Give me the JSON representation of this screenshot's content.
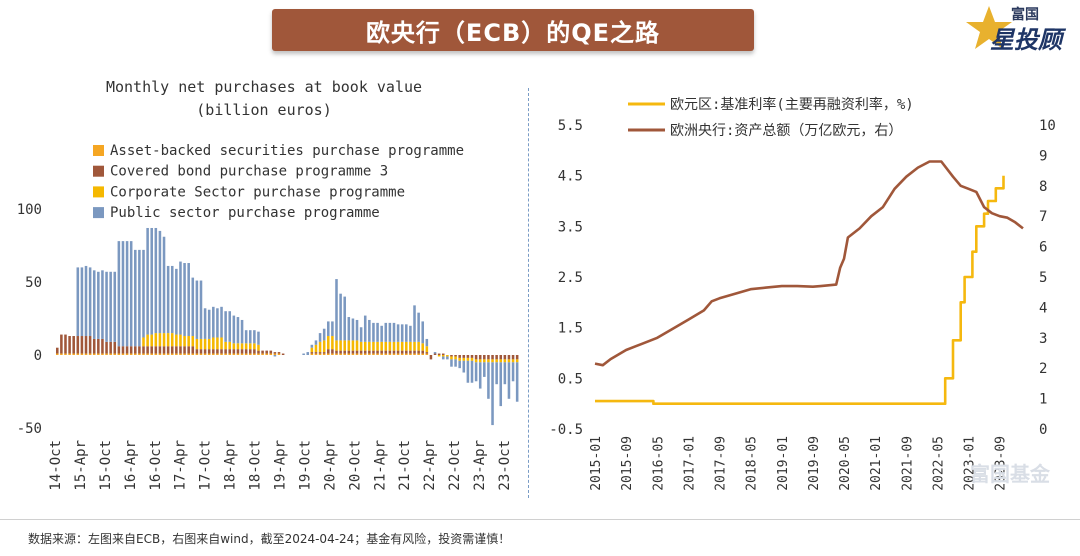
{
  "header": {
    "title": "欧央行（ECB）的QE之路"
  },
  "logo": {
    "top": "富国",
    "main": "星投顾",
    "icon": "star-icon"
  },
  "watermark": {
    "text": "富国基金"
  },
  "footer": {
    "text": "数据来源：左图来自ECB，右图来自wind，截至2024-04-24；基金有风险，投资需谨慎！"
  },
  "colors": {
    "abspp": "#f5a623",
    "cbpp3": "#a0573a",
    "cspp": "#f5b800",
    "pspp": "#7b98c0",
    "rate": "#f5b80f",
    "assets": "#a0573a",
    "banner": "#a0573a"
  },
  "chart_data": [
    {
      "type": "bar",
      "stacked": true,
      "title": "Monthly net purchases at book value",
      "subtitle": "(billion euros)",
      "ylim": [
        -55,
        105
      ],
      "yticks": [
        100,
        50,
        0,
        -50
      ],
      "xticks": [
        "14-Oct",
        "15-Apr",
        "15-Oct",
        "16-Apr",
        "16-Oct",
        "17-Apr",
        "17-Oct",
        "18-Apr",
        "18-Oct",
        "19-Apr",
        "19-Oct",
        "20-Apr",
        "20-Oct",
        "21-Apr",
        "21-Oct",
        "22-Apr",
        "22-Oct",
        "23-Apr",
        "23-Oct"
      ],
      "legend_position": "top-left",
      "series": [
        {
          "name": "Asset-backed securities purchase programme",
          "color": "#f5a623",
          "values": [
            1,
            1,
            1,
            1,
            1,
            1,
            1,
            1,
            1,
            1,
            1,
            1,
            1,
            1,
            1,
            1,
            1,
            1,
            1,
            1,
            1,
            1,
            1,
            1,
            1,
            1,
            1,
            1,
            1,
            1,
            1,
            1,
            1,
            1,
            1,
            1,
            1,
            1,
            1,
            1,
            1,
            1,
            1,
            1,
            1,
            1,
            1,
            1,
            1,
            1,
            1,
            1,
            1,
            1,
            1,
            0,
            0,
            0,
            0,
            0,
            0,
            0,
            1,
            1,
            1,
            1,
            1,
            1,
            1,
            1,
            1,
            1,
            1,
            1,
            1,
            1,
            1,
            1,
            1,
            1,
            1,
            1,
            1,
            1,
            1,
            1,
            1,
            1,
            1,
            1,
            1,
            0,
            0,
            0,
            0,
            0,
            0,
            0,
            0,
            0,
            0,
            0,
            0,
            0,
            0,
            0,
            0,
            0,
            0,
            0,
            0,
            0,
            0
          ]
        },
        {
          "name": "Covered bond purchase programme 3",
          "color": "#a0573a",
          "values": [
            4,
            13,
            13,
            12,
            12,
            12,
            12,
            12,
            12,
            10,
            10,
            10,
            8,
            8,
            8,
            5,
            5,
            5,
            5,
            5,
            5,
            5,
            5,
            5,
            5,
            5,
            5,
            5,
            5,
            5,
            5,
            5,
            5,
            5,
            3,
            3,
            3,
            3,
            3,
            3,
            3,
            3,
            3,
            3,
            3,
            3,
            3,
            3,
            3,
            2,
            2,
            2,
            2,
            1,
            1,
            1,
            0,
            0,
            0,
            0,
            0,
            0,
            1,
            1,
            1,
            1,
            3,
            3,
            2,
            2,
            2,
            2,
            2,
            2,
            2,
            2,
            2,
            2,
            2,
            2,
            2,
            2,
            2,
            2,
            2,
            2,
            2,
            2,
            2,
            2,
            1,
            -3,
            1,
            1,
            1,
            0,
            -1,
            -1,
            -2,
            -2,
            -2,
            -2,
            -3,
            -3,
            -3,
            -3,
            -3,
            -3,
            -3,
            -3,
            -3,
            -3,
            -3
          ]
        },
        {
          "name": "Corporate Sector purchase programme",
          "color": "#f5b800",
          "values": [
            0,
            0,
            0,
            0,
            0,
            0,
            0,
            0,
            0,
            0,
            0,
            0,
            0,
            0,
            0,
            0,
            0,
            0,
            0,
            0,
            0,
            6,
            8,
            8,
            9,
            9,
            9,
            9,
            9,
            8,
            8,
            7,
            7,
            7,
            7,
            7,
            7,
            7,
            8,
            8,
            8,
            5,
            5,
            4,
            4,
            4,
            4,
            4,
            4,
            4,
            0,
            0,
            0,
            0,
            0,
            0,
            0,
            0,
            0,
            0,
            0,
            0,
            3,
            5,
            7,
            8,
            9,
            9,
            7,
            7,
            7,
            7,
            7,
            7,
            6,
            6,
            6,
            6,
            6,
            6,
            6,
            6,
            6,
            6,
            6,
            6,
            6,
            6,
            6,
            5,
            4,
            0,
            0,
            -1,
            -1,
            -1,
            -2,
            -2,
            -2,
            -2,
            -2,
            -2,
            -2,
            -2,
            -2,
            -2,
            -2,
            -2,
            -2,
            -2,
            -2,
            -2,
            -2
          ]
        },
        {
          "name": "Public sector purchase programme",
          "color": "#7b98c0",
          "values": [
            0,
            0,
            0,
            0,
            0,
            47,
            47,
            48,
            47,
            47,
            46,
            47,
            48,
            48,
            48,
            72,
            72,
            72,
            72,
            66,
            66,
            60,
            73,
            73,
            72,
            70,
            66,
            46,
            46,
            45,
            50,
            50,
            50,
            40,
            40,
            40,
            21,
            20,
            21,
            20,
            21,
            21,
            21,
            19,
            18,
            16,
            9,
            9,
            9,
            9,
            0,
            0,
            0,
            -1,
            0,
            0,
            0,
            0,
            0,
            0,
            1,
            2,
            2,
            3,
            6,
            8,
            10,
            10,
            42,
            32,
            30,
            16,
            15,
            14,
            10,
            18,
            15,
            13,
            13,
            11,
            13,
            13,
            13,
            12,
            12,
            12,
            11,
            25,
            20,
            15,
            5,
            0,
            1,
            0,
            -2,
            -2,
            -5,
            -5,
            -5,
            -8,
            -15,
            -15,
            -13,
            -18,
            -10,
            -25,
            -43,
            -15,
            -30,
            -15,
            -25,
            -13,
            -27
          ]
        }
      ]
    },
    {
      "type": "line",
      "xticks": [
        "2015-01",
        "2015-09",
        "2016-05",
        "2017-01",
        "2017-09",
        "2018-05",
        "2019-01",
        "2019-09",
        "2020-05",
        "2021-01",
        "2021-09",
        "2022-05",
        "2023-01",
        "2023-09"
      ],
      "left_yticks": [
        "5.5",
        "4.5",
        "3.5",
        "2.5",
        "1.5",
        "0.5",
        "-0.5"
      ],
      "right_yticks": [
        "10",
        "9",
        "8",
        "7",
        "6",
        "5",
        "4",
        "3",
        "2",
        "1",
        "0"
      ],
      "ylim_left": [
        -0.5,
        5.5
      ],
      "ylim_right": [
        0,
        10
      ],
      "legend_position": "top",
      "series": [
        {
          "name": "欧元区:基准利率(主要再融资利率，%)",
          "color": "#f5b80f",
          "axis": "left",
          "points": [
            [
              "2015-01",
              0.05
            ],
            [
              "2016-03",
              0.05
            ],
            [
              "2016-04",
              0.0
            ],
            [
              "2022-06",
              0.0
            ],
            [
              "2022-07",
              0.5
            ],
            [
              "2022-09",
              1.25
            ],
            [
              "2022-11",
              2.0
            ],
            [
              "2022-12",
              2.5
            ],
            [
              "2023-02",
              3.0
            ],
            [
              "2023-03",
              3.5
            ],
            [
              "2023-05",
              3.75
            ],
            [
              "2023-06",
              4.0
            ],
            [
              "2023-08",
              4.25
            ],
            [
              "2023-10",
              4.5
            ]
          ]
        },
        {
          "name": "欧洲央行:资产总额（万亿欧元，右）",
          "color": "#a0573a",
          "axis": "right",
          "points": [
            [
              "2015-01",
              2.15
            ],
            [
              "2015-03",
              2.1
            ],
            [
              "2015-05",
              2.3
            ],
            [
              "2015-09",
              2.6
            ],
            [
              "2016-01",
              2.8
            ],
            [
              "2016-05",
              3.0
            ],
            [
              "2016-09",
              3.3
            ],
            [
              "2017-01",
              3.6
            ],
            [
              "2017-05",
              3.9
            ],
            [
              "2017-07",
              4.2
            ],
            [
              "2017-09",
              4.3
            ],
            [
              "2018-01",
              4.45
            ],
            [
              "2018-05",
              4.6
            ],
            [
              "2018-09",
              4.65
            ],
            [
              "2019-01",
              4.7
            ],
            [
              "2019-05",
              4.7
            ],
            [
              "2019-09",
              4.68
            ],
            [
              "2019-11",
              4.7
            ],
            [
              "2020-03",
              4.75
            ],
            [
              "2020-04",
              5.3
            ],
            [
              "2020-05",
              5.6
            ],
            [
              "2020-06",
              6.3
            ],
            [
              "2020-09",
              6.6
            ],
            [
              "2020-12",
              7.0
            ],
            [
              "2021-03",
              7.3
            ],
            [
              "2021-06",
              7.9
            ],
            [
              "2021-09",
              8.3
            ],
            [
              "2021-12",
              8.6
            ],
            [
              "2022-03",
              8.8
            ],
            [
              "2022-06",
              8.8
            ],
            [
              "2022-09",
              8.3
            ],
            [
              "2022-11",
              8.0
            ],
            [
              "2023-01",
              7.9
            ],
            [
              "2023-03",
              7.8
            ],
            [
              "2023-05",
              7.3
            ],
            [
              "2023-07",
              7.1
            ],
            [
              "2023-09",
              7.0
            ],
            [
              "2023-11",
              6.95
            ],
            [
              "2024-01",
              6.8
            ],
            [
              "2024-03",
              6.6
            ]
          ]
        }
      ]
    }
  ]
}
